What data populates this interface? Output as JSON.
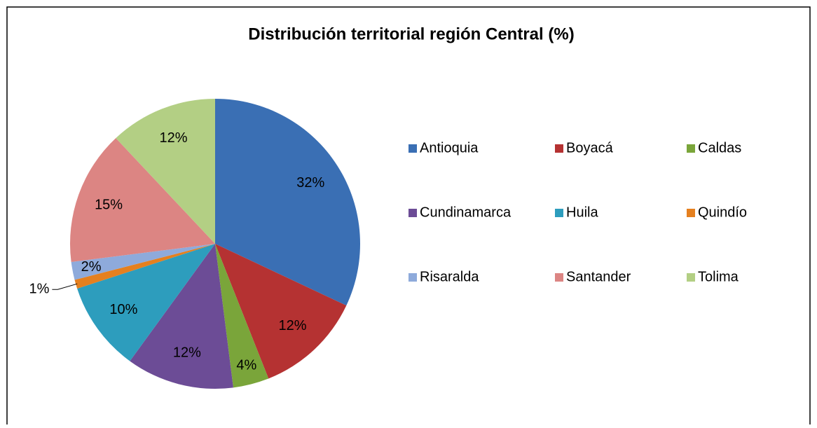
{
  "chart_data": {
    "type": "pie",
    "title": "Distribución territorial región Central (%)",
    "categories": [
      "Antioquia",
      "Boyacá",
      "Caldas",
      "Cundinamarca",
      "Huila",
      "Quindío",
      "Risaralda",
      "Santander",
      "Tolima"
    ],
    "values": [
      32,
      12,
      4,
      12,
      10,
      1,
      2,
      15,
      12
    ],
    "value_labels": [
      "32%",
      "12%",
      "4%",
      "12%",
      "10%",
      "1%",
      "2%",
      "15%",
      "12%"
    ],
    "colors": [
      "#3a6fb4",
      "#b53232",
      "#7aa53a",
      "#6c4c96",
      "#2d9dbd",
      "#e5801f",
      "#8eaadb",
      "#dc8583",
      "#b3cf84"
    ],
    "legend": "right"
  }
}
